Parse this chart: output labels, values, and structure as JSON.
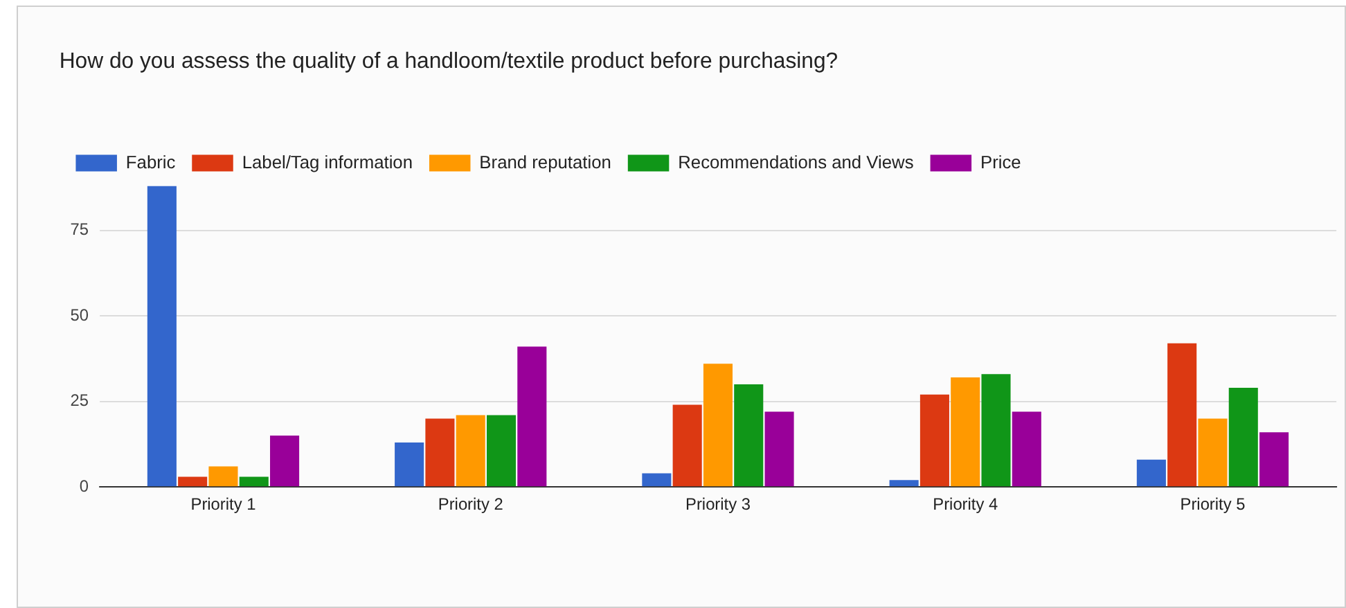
{
  "chart_data": {
    "type": "bar",
    "title": "How do you assess the quality of a handloom/textile product before purchasing?",
    "categories": [
      "Priority 1",
      "Priority 2",
      "Priority 3",
      "Priority 4",
      "Priority 5"
    ],
    "series": [
      {
        "name": "Fabric",
        "color": "#3366cc",
        "values": [
          88,
          13,
          4,
          2,
          8
        ]
      },
      {
        "name": "Label/Tag information",
        "color": "#dc3912",
        "values": [
          3,
          20,
          24,
          27,
          42
        ]
      },
      {
        "name": "Brand reputation",
        "color": "#ff9900",
        "values": [
          6,
          21,
          36,
          32,
          20
        ]
      },
      {
        "name": "Recommendations and Views",
        "color": "#109618",
        "values": [
          3,
          21,
          30,
          33,
          29
        ]
      },
      {
        "name": "Price",
        "color": "#990099",
        "values": [
          15,
          41,
          22,
          22,
          16
        ]
      }
    ],
    "ylim": [
      0,
      88
    ],
    "yticks": [
      0,
      25,
      50,
      75
    ],
    "grid": "y",
    "legend": "top left"
  }
}
